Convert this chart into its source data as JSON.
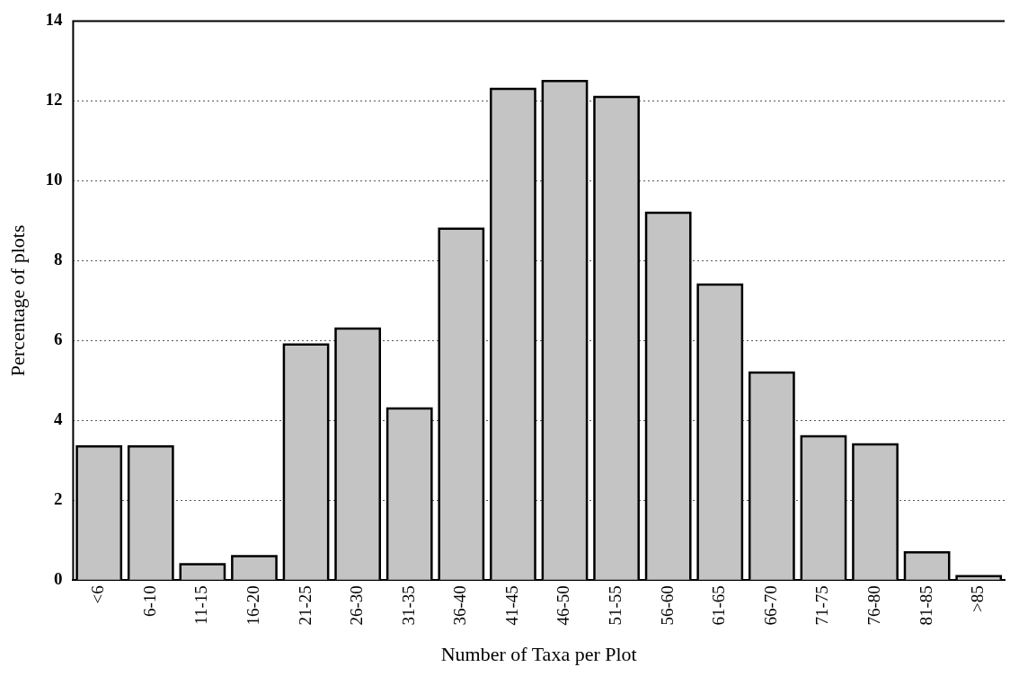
{
  "chart_data": {
    "type": "bar",
    "xlabel": "Number of Taxa per Plot",
    "ylabel": "Percentage of plots",
    "categories": [
      "<6",
      "6-10",
      "11-15",
      "16-20",
      "21-25",
      "26-30",
      "31-35",
      "36-40",
      "41-45",
      "46-50",
      "51-55",
      "56-60",
      "61-65",
      "66-70",
      "71-75",
      "76-80",
      "81-85",
      ">85"
    ],
    "values": [
      3.35,
      3.35,
      0.4,
      0.6,
      5.9,
      6.3,
      4.3,
      8.8,
      12.3,
      12.5,
      12.1,
      9.2,
      7.4,
      5.2,
      3.6,
      3.4,
      0.7,
      0.1
    ],
    "color": "#c4c4c4",
    "ylim": [
      0,
      14
    ],
    "yticks": [
      0,
      2,
      4,
      6,
      8,
      10,
      12,
      14
    ],
    "grid": "y"
  }
}
